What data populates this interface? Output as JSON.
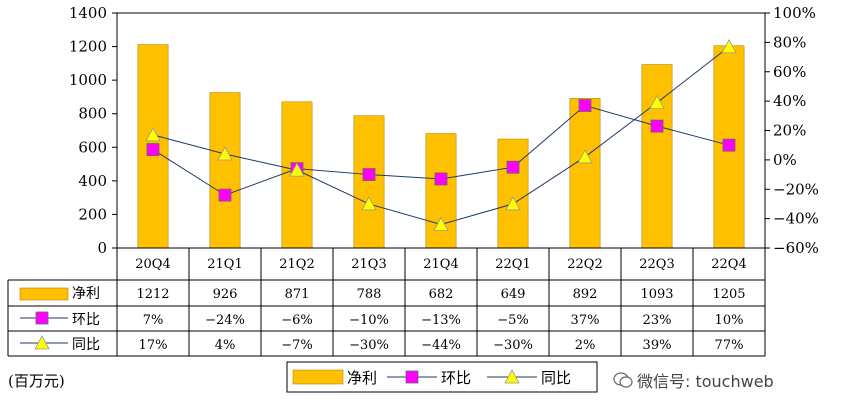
{
  "chart_data": {
    "type": "bar+line",
    "categories": [
      "20Q4",
      "21Q1",
      "21Q2",
      "21Q3",
      "21Q4",
      "22Q1",
      "22Q2",
      "22Q3",
      "22Q4"
    ],
    "series": [
      {
        "name": "净利",
        "kind": "bar",
        "axis": "left",
        "values": [
          1212,
          926,
          871,
          788,
          682,
          649,
          892,
          1093,
          1205
        ],
        "labels": [
          "1212",
          "926",
          "871",
          "788",
          "682",
          "649",
          "892",
          "1093",
          "1205"
        ]
      },
      {
        "name": "环比",
        "kind": "line",
        "marker": "square",
        "axis": "right",
        "values": [
          7,
          -24,
          -6,
          -10,
          -13,
          -5,
          37,
          23,
          10
        ],
        "labels": [
          "7%",
          "−24%",
          "−6%",
          "−10%",
          "−13%",
          "−5%",
          "37%",
          "23%",
          "10%"
        ]
      },
      {
        "name": "同比",
        "kind": "line",
        "marker": "triangle",
        "axis": "right",
        "values": [
          17,
          4,
          -7,
          -30,
          -44,
          -30,
          2,
          39,
          77
        ],
        "labels": [
          "17%",
          "4%",
          "−7%",
          "−30%",
          "−44%",
          "−30%",
          "2%",
          "39%",
          "77%"
        ]
      }
    ],
    "ylim_left": [
      0,
      1400
    ],
    "yticks_left": [
      "0",
      "200",
      "400",
      "600",
      "800",
      "1000",
      "1200",
      "1400"
    ],
    "ylim_right": [
      -60,
      100
    ],
    "yticks_right": [
      "−60%",
      "−40%",
      "−20%",
      "0%",
      "20%",
      "40%",
      "60%",
      "80%",
      "100%"
    ],
    "legend": [
      "净利",
      "环比",
      "同比"
    ],
    "legend_position": "bottom",
    "unit_label": "(百万元)"
  },
  "colors": {
    "bar": "#FFC000",
    "bar_edge": "#B8860B",
    "mom": "#FF00FF",
    "yoy": "#FFFF00",
    "line": "#1F3A68"
  },
  "watermark": "微信号: touchweb"
}
